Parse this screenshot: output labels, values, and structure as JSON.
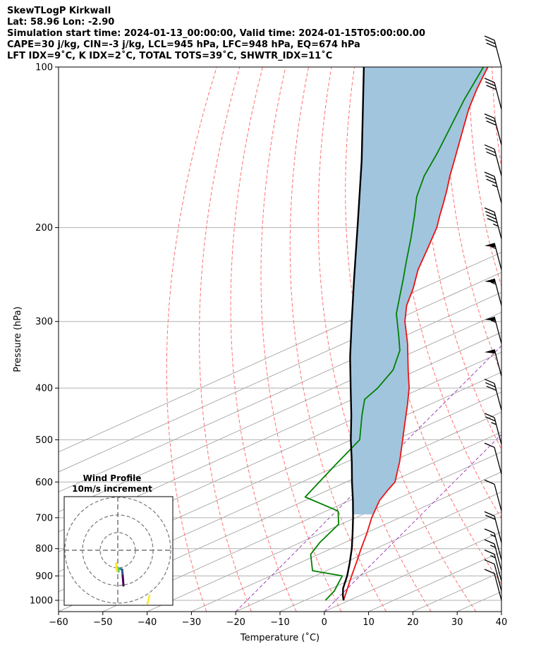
{
  "header": {
    "title": "SkewTLogP Kirkwall",
    "location": "Lat: 58.96   Lon: -2.90",
    "times": "Simulation start time: 2024-01-13_00:00:00, Valid time: 2024-01-15T05:00:00.00",
    "params": "CAPE=30 j/kg, CIN=-3 j/kg, LCL=945 hPa, LFC=948 hPa, EQ=674 hPa",
    "indices": "LFT IDX=9˚C, K IDX=2˚C, TOTAL TOTS=39˚C, SHWTR_IDX=11˚C"
  },
  "chart_data": {
    "type": "line",
    "subtype": "skew-t log-p",
    "xlabel": "Temperature (˚C)",
    "ylabel": "Pressure (hPa)",
    "xlim": [
      -60,
      40
    ],
    "ylim": [
      1050,
      100
    ],
    "yscale": "log",
    "grid": true,
    "x_ticks": [
      -60,
      -50,
      -40,
      -30,
      -20,
      -10,
      0,
      10,
      20,
      30,
      40
    ],
    "y_ticks": [
      100,
      200,
      300,
      400,
      500,
      600,
      700,
      800,
      900,
      1000
    ],
    "colors": {
      "temperature": "#ee1111",
      "dewpoint": "#008000",
      "parcel": "#000000",
      "cape_fill": "#a2c5de",
      "dry_adiabats": "#ff6060",
      "moist_adiabats": "#6070ff",
      "mixing_ratio": "#9a9a9a",
      "special_isotherm": "#a040c0"
    },
    "series": [
      {
        "key": "temperature",
        "p": [
          1000,
          950,
          900,
          850,
          800,
          750,
          700,
          650,
          620,
          600,
          550,
          500,
          470,
          430,
          400,
          370,
          330,
          300,
          280,
          260,
          240,
          220,
          200,
          190,
          180,
          170,
          160,
          150,
          140,
          130,
          120,
          110,
          100
        ],
        "t": [
          1.8,
          0.0,
          -1.9,
          -3.8,
          -5.9,
          -8.0,
          -10.5,
          -12.6,
          -13.1,
          -13.3,
          -16.8,
          -21.1,
          -23.9,
          -27.9,
          -31.3,
          -35.6,
          -41.7,
          -47.3,
          -50.5,
          -52.9,
          -56.0,
          -58.5,
          -61.3,
          -63.3,
          -65.3,
          -67.5,
          -70.0,
          -72.4,
          -75.0,
          -77.8,
          -80.8,
          -83.5,
          -86.0
        ]
      },
      {
        "key": "dewpoint",
        "p": [
          1000,
          960,
          930,
          900,
          880,
          820,
          780,
          720,
          680,
          640,
          560,
          500,
          450,
          420,
          400,
          370,
          340,
          320,
          290,
          270,
          250,
          230,
          210,
          190,
          175,
          160,
          145,
          130,
          115,
          100
        ],
        "t": [
          -2.3,
          -2.4,
          -3.2,
          -4.0,
          -11.9,
          -16.0,
          -16.6,
          -16.5,
          -19.6,
          -30.2,
          -30.6,
          -30.8,
          -35.8,
          -38.8,
          -38.4,
          -39.0,
          -41.9,
          -45.3,
          -51.0,
          -54.0,
          -57.2,
          -60.8,
          -64.6,
          -69.0,
          -72.8,
          -75.8,
          -78.0,
          -80.8,
          -84.0,
          -87.0
        ]
      },
      {
        "key": "parcel",
        "p": [
          1000,
          980,
          950,
          900,
          850,
          800,
          750,
          700,
          650,
          600,
          550,
          500,
          450,
          400,
          350,
          300,
          250,
          200,
          150,
          100
        ],
        "t": [
          1.8,
          0.6,
          -1.0,
          -2.9,
          -5.3,
          -8.0,
          -11.2,
          -14.7,
          -18.6,
          -23.0,
          -27.6,
          -32.8,
          -38.2,
          -44.5,
          -51.6,
          -59.3,
          -68.3,
          -79.2,
          -93.3,
          -114.0
        ]
      }
    ],
    "wind_barbs": [
      {
        "p": 100,
        "speed_kt": 30
      },
      {
        "p": 120,
        "speed_kt": 30
      },
      {
        "p": 140,
        "speed_kt": 30
      },
      {
        "p": 160,
        "speed_kt": 30
      },
      {
        "p": 180,
        "speed_kt": 35
      },
      {
        "p": 210,
        "speed_kt": 45
      },
      {
        "p": 240,
        "speed_kt": 55
      },
      {
        "p": 280,
        "speed_kt": 55
      },
      {
        "p": 330,
        "speed_kt": 55
      },
      {
        "p": 380,
        "speed_kt": 50
      },
      {
        "p": 440,
        "speed_kt": 30
      },
      {
        "p": 510,
        "speed_kt": 25
      },
      {
        "p": 580,
        "speed_kt": 10
      },
      {
        "p": 680,
        "speed_kt": 10
      },
      {
        "p": 780,
        "speed_kt": 20
      },
      {
        "p": 840,
        "speed_kt": 15
      },
      {
        "p": 880,
        "speed_kt": 15
      },
      {
        "p": 920,
        "speed_kt": 15
      },
      {
        "p": 960,
        "speed_kt": 10
      },
      {
        "p": 1000,
        "speed_kt": 10
      }
    ],
    "inset": {
      "title": "Wind Profile",
      "subtitle": "10m/s increment",
      "rings_ms": [
        10,
        20,
        30
      ],
      "hodograph": [
        {
          "u": 3.2,
          "v": -20.0
        },
        {
          "u": 3.0,
          "v": -17.0
        },
        {
          "u": 2.7,
          "v": -13.5
        },
        {
          "u": 2.5,
          "v": -11.0
        },
        {
          "u": 1.5,
          "v": -10.5
        },
        {
          "u": 0.3,
          "v": -10.3
        },
        {
          "u": 0.5,
          "v": -12.0
        },
        {
          "u": -0.5,
          "v": -11.5
        },
        {
          "u": -1.0,
          "v": -7.5
        }
      ],
      "colormap": [
        "#440154",
        "#3b528b",
        "#21918c",
        "#5ec962",
        "#fde725"
      ]
    }
  }
}
